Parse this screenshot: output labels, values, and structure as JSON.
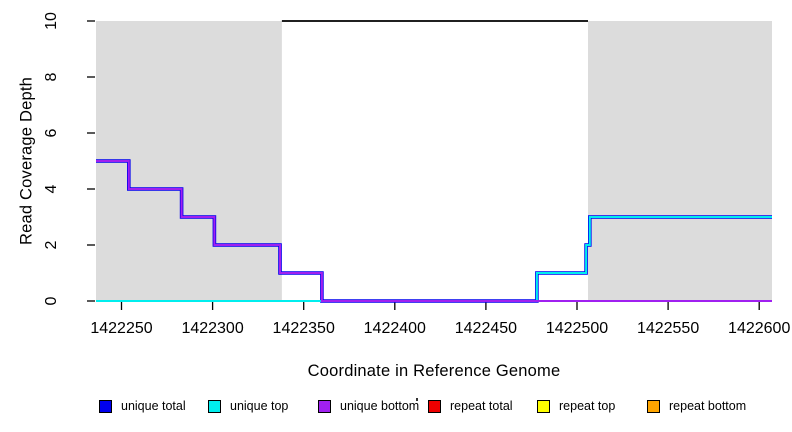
{
  "chart_data": {
    "type": "line",
    "subtype": "step",
    "title": "",
    "xlabel": "Coordinate in Reference Genome",
    "ylabel": "Read Coverage Depth",
    "xlim": [
      1422236,
      1422607
    ],
    "ylim": [
      0,
      10
    ],
    "x_ticks": [
      1422250,
      1422300,
      1422350,
      1422400,
      1422450,
      1422500,
      1422550,
      1422600
    ],
    "y_ticks": [
      0,
      2,
      4,
      6,
      8,
      10
    ],
    "grid": false,
    "legend_position": "bottom",
    "shaded_regions": [
      {
        "name": "repeat-region-left",
        "x0": 1422236,
        "x1": 1422338,
        "color": "#DCDCDC"
      },
      {
        "name": "repeat-region-right",
        "x0": 1422506,
        "x1": 1422607,
        "color": "#DCDCDC"
      }
    ],
    "reference_line": {
      "y": 10,
      "x0": 1422338,
      "x1": 1422506,
      "color": "#000000"
    },
    "series": [
      {
        "name": "unique total",
        "color": "#0000EE",
        "lwd": 3.6,
        "points": [
          [
            1422236,
            5
          ],
          [
            1422254,
            5
          ],
          [
            1422254,
            4
          ],
          [
            1422283,
            4
          ],
          [
            1422283,
            3
          ],
          [
            1422301,
            3
          ],
          [
            1422301,
            2
          ],
          [
            1422337,
            2
          ],
          [
            1422337,
            1
          ],
          [
            1422360,
            1
          ],
          [
            1422360,
            0
          ],
          [
            1422478,
            0
          ],
          [
            1422478,
            1
          ],
          [
            1422505,
            1
          ],
          [
            1422505,
            2
          ],
          [
            1422507,
            2
          ],
          [
            1422507,
            3
          ],
          [
            1422607,
            3
          ]
        ]
      },
      {
        "name": "unique top",
        "color": "#00EEEE",
        "lwd": 2,
        "points": [
          [
            1422236,
            0
          ],
          [
            1422478,
            0
          ],
          [
            1422478,
            1
          ],
          [
            1422505,
            1
          ],
          [
            1422505,
            2
          ],
          [
            1422507,
            2
          ],
          [
            1422507,
            3
          ],
          [
            1422607,
            3
          ]
        ]
      },
      {
        "name": "unique bottom",
        "color": "#A020F0",
        "lwd": 2,
        "points": [
          [
            1422236,
            5
          ],
          [
            1422254,
            5
          ],
          [
            1422254,
            4
          ],
          [
            1422283,
            4
          ],
          [
            1422283,
            3
          ],
          [
            1422301,
            3
          ],
          [
            1422301,
            2
          ],
          [
            1422337,
            2
          ],
          [
            1422337,
            1
          ],
          [
            1422360,
            1
          ],
          [
            1422360,
            0
          ],
          [
            1422607,
            0
          ]
        ]
      },
      {
        "name": "repeat total",
        "color": "#EE0000",
        "lwd": 2,
        "points": []
      },
      {
        "name": "repeat top",
        "color": "#FFFF00",
        "lwd": 2,
        "points": []
      },
      {
        "name": "repeat bottom",
        "color": "#FFA500",
        "lwd": 2,
        "points": []
      }
    ]
  }
}
